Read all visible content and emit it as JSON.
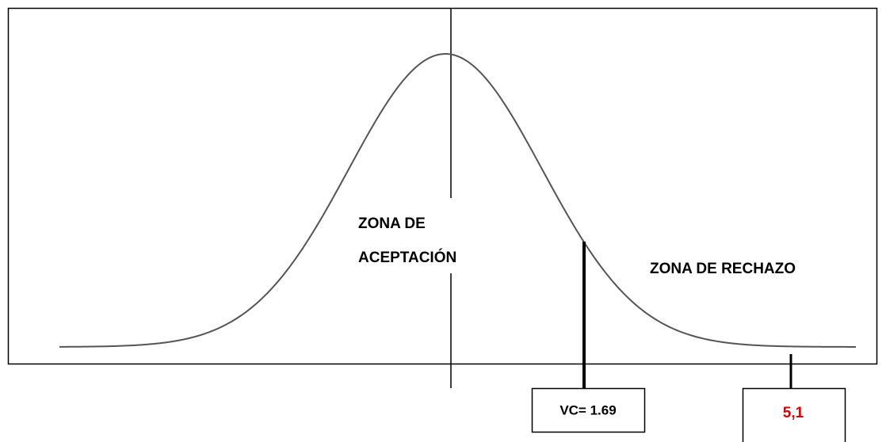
{
  "labels": {
    "acceptance_line1": "ZONA DE",
    "acceptance_line2": "ACEPTACIÓN",
    "rejection": "ZONA DE RECHAZO",
    "critical_value": "VC= 1.69",
    "statistic": "5,1"
  }
}
